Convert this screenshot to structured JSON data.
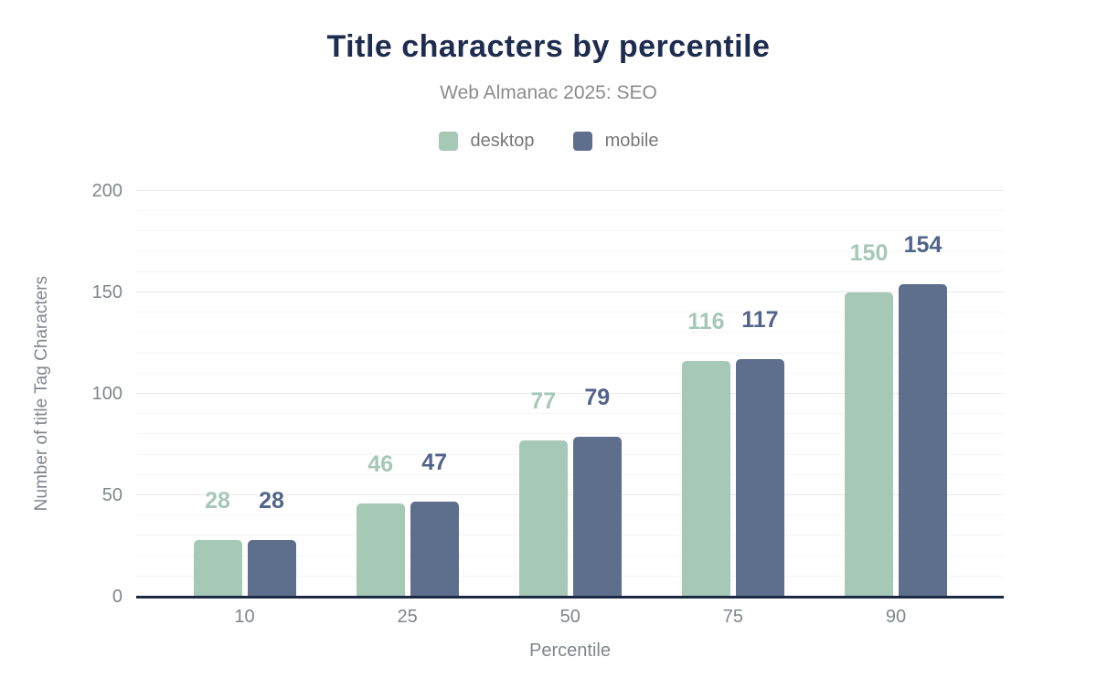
{
  "chart_data": {
    "type": "bar",
    "title": "Title characters by percentile",
    "subtitle": "Web Almanac 2025: SEO",
    "categories": [
      "10",
      "25",
      "50",
      "75",
      "90"
    ],
    "series": [
      {
        "name": "desktop",
        "color": "#a6c8b6",
        "label_color": "#a6c8b6",
        "values": [
          28,
          46,
          77,
          116,
          150
        ]
      },
      {
        "name": "mobile",
        "color": "#5e6f8d",
        "label_color": "#52648a",
        "values": [
          28,
          47,
          79,
          117,
          154
        ]
      }
    ],
    "xlabel": "Percentile",
    "ylabel": "Number of title Tag Characters",
    "ylim": [
      0,
      200
    ],
    "yticks": [
      0,
      50,
      100,
      150,
      200
    ],
    "minor_grid_step": 10,
    "major_grid_step": 50,
    "grid": true,
    "legend_position": "top"
  },
  "colors": {
    "title": "#1e2c50",
    "subtitle": "#8b8b8b",
    "axis_text": "#80858d",
    "axis_line": "#1b2942",
    "major_grid": "#e9e9eb",
    "minor_grid": "#f5f5f6",
    "background": "#ffffff"
  }
}
